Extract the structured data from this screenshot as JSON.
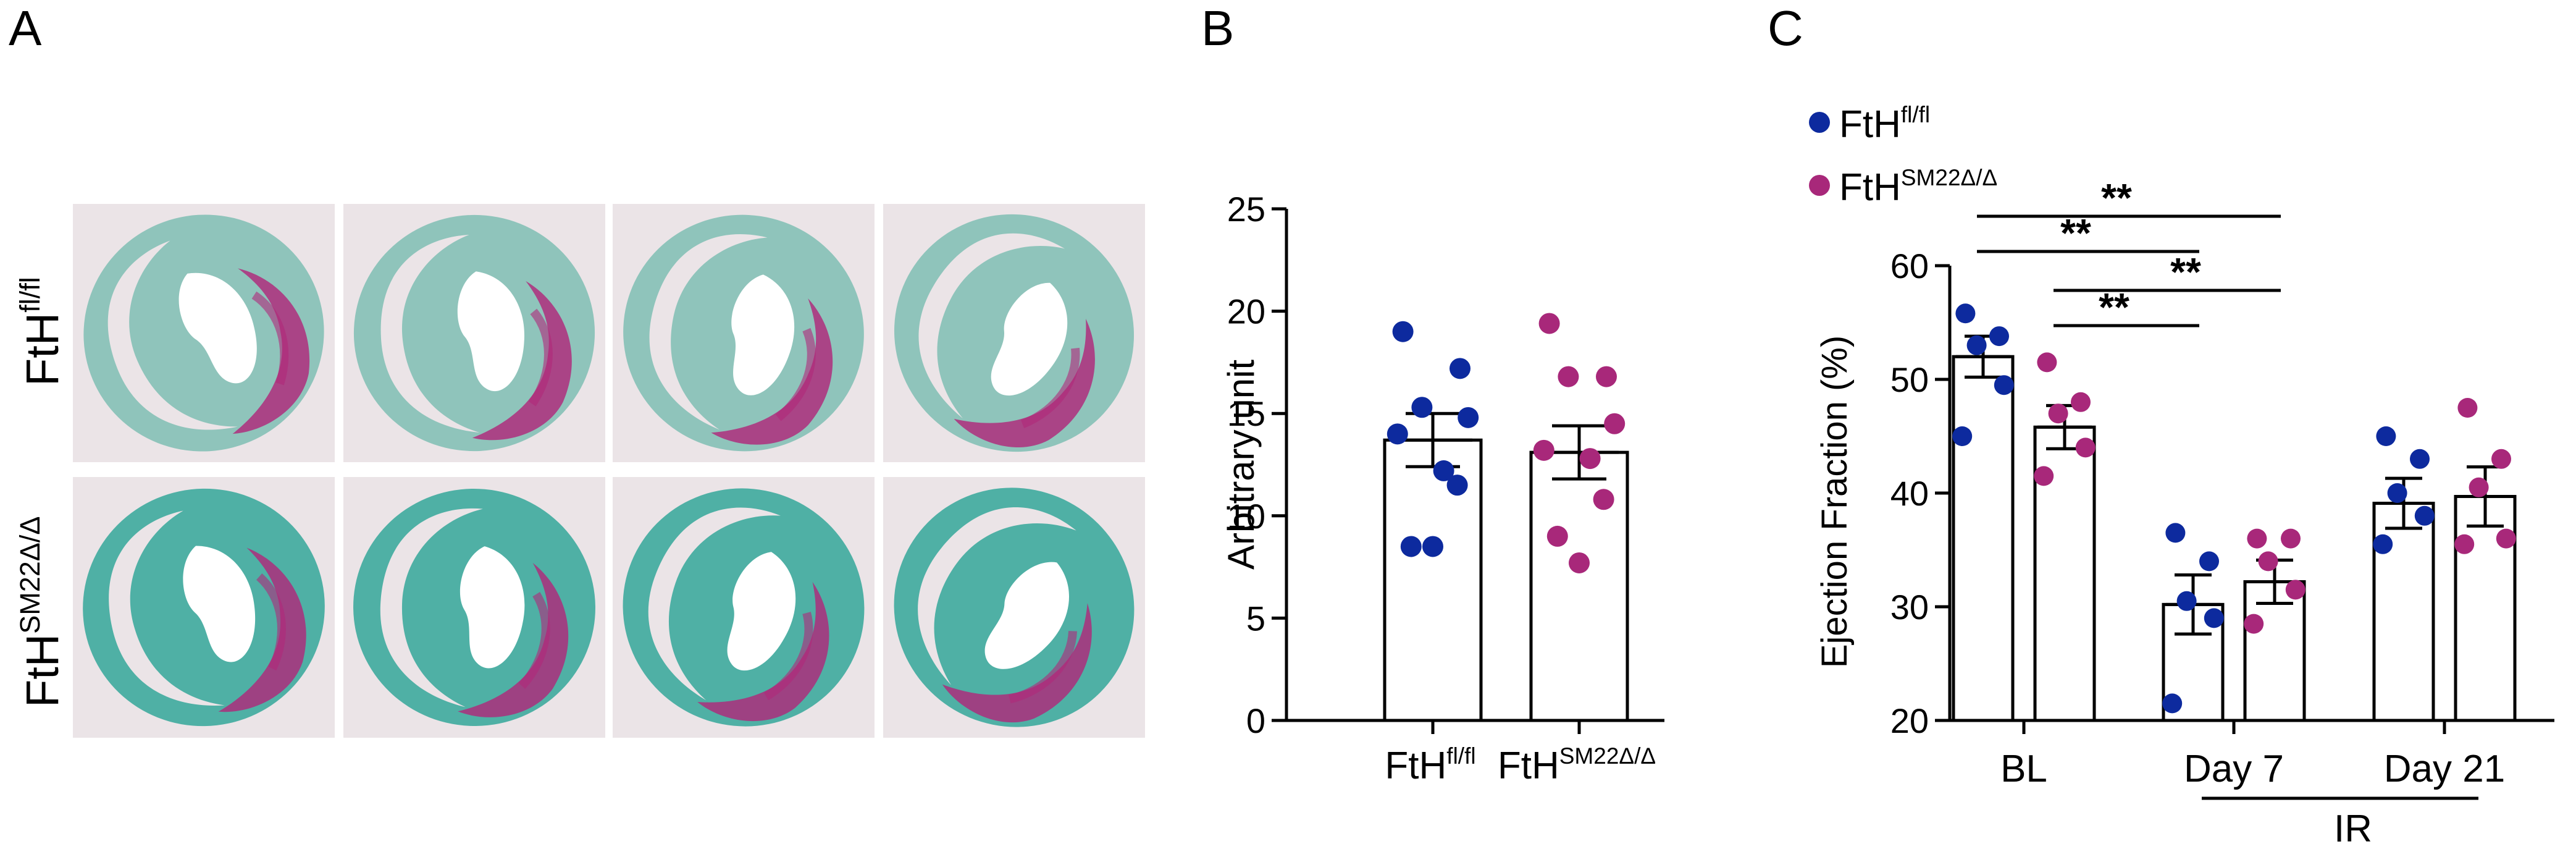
{
  "panels": {
    "A": {
      "letter": "A",
      "row_labels": [
        {
          "base": "FtH",
          "sup": "fl/fl"
        },
        {
          "base": "FtH",
          "sup": "SM22Δ/Δ"
        }
      ],
      "stain_colors": {
        "tissue": "#5fb3a6",
        "fibrosis": "#b0287a",
        "background": "#ebe4e7"
      }
    },
    "B": {
      "letter": "B"
    },
    "C": {
      "letter": "C"
    }
  },
  "colors": {
    "wt": "#0d2a9e",
    "ko": "#a8287a",
    "bar_fill": "#ffffff",
    "axis": "#000000"
  },
  "chart_data": [
    {
      "panel": "B",
      "type": "bar",
      "ylabel": "Arbitrary unit",
      "ylim": [
        0,
        25
      ],
      "yticks": [
        0,
        5,
        10,
        15,
        20,
        25
      ],
      "categories": [
        {
          "base": "FtH",
          "sup": "fl/fl"
        },
        {
          "base": "FtH",
          "sup": "SM22Δ/Δ"
        }
      ],
      "series": [
        {
          "name": "FtH fl/fl",
          "color_key": "wt",
          "mean": 13.7,
          "sem": 1.3,
          "points": [
            19.0,
            17.2,
            15.3,
            14.8,
            14.0,
            12.2,
            11.5,
            8.5,
            8.5
          ]
        },
        {
          "name": "FtH SM22Δ/Δ",
          "color_key": "ko",
          "mean": 13.1,
          "sem": 1.3,
          "points": [
            19.4,
            16.8,
            16.8,
            14.5,
            13.2,
            12.8,
            10.8,
            9.0,
            7.7
          ]
        }
      ]
    },
    {
      "panel": "C",
      "type": "bar",
      "ylabel": "Ejection Fraction (%)",
      "ylim": [
        20,
        60
      ],
      "yticks": [
        20,
        30,
        40,
        50,
        60
      ],
      "groups": [
        "BL",
        "Day 7",
        "Day 21"
      ],
      "bracket_label": "IR",
      "legend": [
        {
          "base": "FtH",
          "sup": "fl/fl",
          "color_key": "wt"
        },
        {
          "base": "FtH",
          "sup": "SM22Δ/Δ",
          "color_key": "ko"
        }
      ],
      "series": [
        {
          "name": "FtH fl/fl",
          "color_key": "wt",
          "mean": [
            52.0,
            30.2,
            39.1
          ],
          "sem": [
            1.8,
            2.6,
            2.2
          ],
          "points": [
            [
              55.8,
              53.8,
              53.0,
              49.5,
              45.0
            ],
            [
              36.5,
              34.0,
              30.5,
              29.0,
              21.5
            ],
            [
              45.0,
              43.0,
              40.0,
              38.0,
              35.5
            ]
          ]
        },
        {
          "name": "FtH SM22Δ/Δ",
          "color_key": "ko",
          "mean": [
            45.8,
            32.2,
            39.7
          ],
          "sem": [
            1.9,
            1.9,
            2.6
          ],
          "points": [
            [
              51.5,
              48.0,
              47.0,
              44.0,
              41.5
            ],
            [
              36.0,
              36.0,
              34.0,
              31.5,
              28.5
            ],
            [
              47.5,
              43.0,
              40.5,
              36.0,
              35.5
            ]
          ]
        }
      ],
      "significance": [
        {
          "label": "**",
          "from": [
            0,
            0
          ],
          "to": [
            1,
            1
          ]
        },
        {
          "label": "**",
          "from": [
            0,
            0
          ],
          "to": [
            1,
            0
          ]
        },
        {
          "label": "**",
          "from": [
            0,
            1
          ],
          "to": [
            1,
            1
          ]
        },
        {
          "label": "**",
          "from": [
            0,
            1
          ],
          "to": [
            1,
            0
          ]
        }
      ]
    }
  ]
}
